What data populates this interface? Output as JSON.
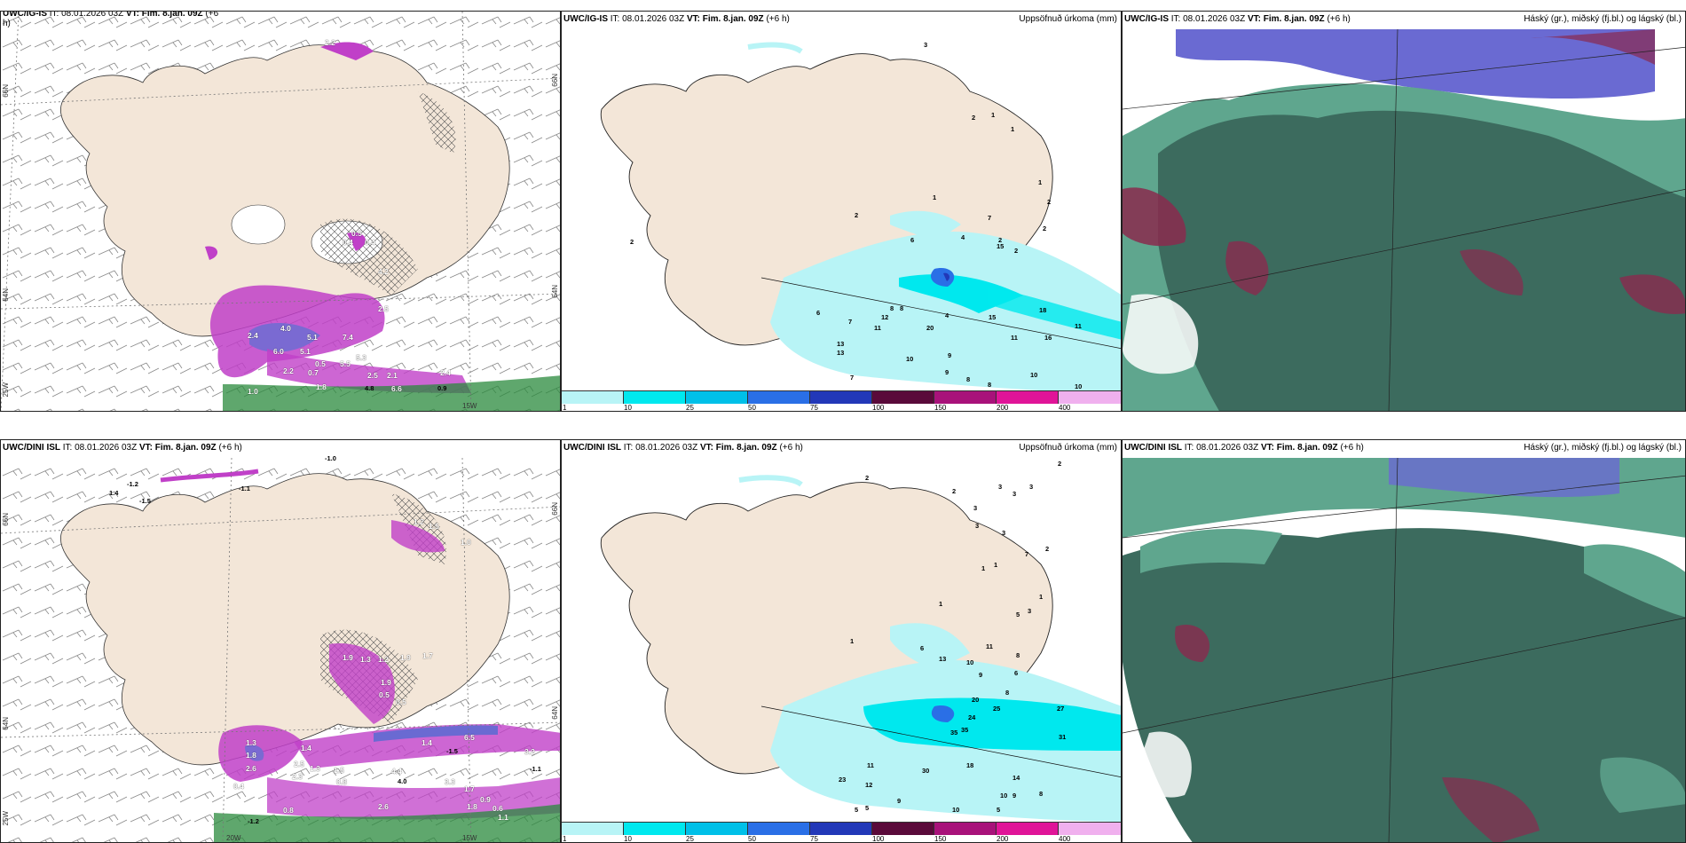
{
  "panels": {
    "top_left": {
      "title_model": "UWC/IG-IS",
      "title_it": "IT: 08.01.2026 03Z",
      "title_vt": "VT: Fim. 8.jan. 09Z",
      "title_step": "(+6",
      "title_wrap": "h)",
      "lat_labels": [
        "66N",
        "64N",
        "25W"
      ],
      "lat_labels_right": [
        "66N",
        "64N"
      ],
      "lon_labels": [
        "15W"
      ],
      "values": [
        "2.2",
        "0.5",
        "0.4",
        "0.4",
        "2.5",
        "4.0",
        "2.4",
        "5.1",
        "7.4",
        "6.0",
        "5.1",
        "5.5",
        "5.3",
        "2.5",
        "2.1",
        "2.2",
        "0.7",
        "0.5",
        "1.8",
        "4.8",
        "6.6",
        "0.9",
        "1.0",
        "2.4",
        "4.2",
        "1.5"
      ]
    },
    "top_mid": {
      "title_model": "UWC/IG-IS",
      "title_it": "IT: 08.01.2026 03Z",
      "title_vt": "VT: Fim. 8.jan. 09Z",
      "title_step": "(+6 h)",
      "right_label": "Uppsöfnuð úrkoma (mm)",
      "values": [
        "3",
        "2",
        "1",
        "1",
        "1",
        "1",
        "2",
        "2",
        "2",
        "7",
        "2",
        "15",
        "6",
        "4",
        "2",
        "6",
        "2",
        "13",
        "7",
        "8",
        "8",
        "12",
        "11",
        "20",
        "15",
        "18",
        "11",
        "4",
        "11",
        "16",
        "13",
        "10",
        "9",
        "7",
        "9",
        "8",
        "10",
        "8",
        "10",
        "5"
      ]
    },
    "top_right": {
      "title_model": "UWC/IG-IS",
      "title_it": "IT: 08.01.2026 03Z",
      "title_vt": "VT: Fim. 8.jan. 09Z",
      "title_step": "(+6 h)",
      "right_label": "Háský (gr.), miðský (fj.bl.) og lágský (bl.)"
    },
    "bottom_left": {
      "title_model": "UWC/DINI ISL",
      "title_it": "IT: 08.01.2026 03Z",
      "title_vt": "VT: Fim. 8.jan. 09Z",
      "title_step": "(+6 h)",
      "lat_labels": [
        "66N",
        "64N",
        "25W"
      ],
      "lat_labels_right": [
        "66N",
        "64N"
      ],
      "lon_labels": [
        "20W",
        "15W"
      ],
      "values": [
        "-1.0",
        "-1.2",
        "1.4",
        "-1.5",
        "-1.1",
        "1.2",
        "1.5",
        "1.0",
        "1.9",
        "1.3",
        "1.2",
        "1.9",
        "1.7",
        "0.5",
        "1.9",
        "0.5",
        "1.3",
        "1.8",
        "2.6",
        "2.5",
        "1.3",
        "1.4",
        "2.3",
        "1.5",
        "0.8",
        "0.4",
        "-1.5",
        "1.4",
        "6.5",
        "3.2",
        "4.4",
        "4.0",
        "3.3",
        "1.7",
        "-1.1",
        "0.9",
        "0.6",
        "2.6",
        "1.8",
        "-1.2",
        "0.8",
        "1.1"
      ]
    },
    "bottom_mid": {
      "title_model": "UWC/DINI ISL",
      "title_it": "IT: 08.01.2026 03Z",
      "title_vt": "VT: Fim. 8.jan. 09Z",
      "title_step": "(+6 h)",
      "right_label": "Uppsöfnuð úrkoma (mm)",
      "values": [
        "2",
        "2",
        "3",
        "3",
        "3",
        "2",
        "3",
        "3",
        "3",
        "7",
        "2",
        "1",
        "1",
        "1",
        "1",
        "5",
        "3",
        "1",
        "6",
        "11",
        "8",
        "13",
        "10",
        "9",
        "6",
        "8",
        "20",
        "25",
        "27",
        "24",
        "35",
        "35",
        "31",
        "30",
        "18",
        "14",
        "12",
        "11",
        "23",
        "9",
        "5",
        "5",
        "10",
        "10",
        "9",
        "8",
        "5"
      ]
    },
    "bottom_right": {
      "title_model": "UWC/DINI ISL",
      "title_it": "IT: 08.01.2026 03Z",
      "title_vt": "VT: Fim. 8.jan. 09Z",
      "title_step": "(+6 h)",
      "right_label": "Háský (gr.), miðský (fj.bl.) og lágský (bl.)"
    }
  },
  "colorbar": {
    "ticks": [
      "1",
      "10",
      "25",
      "50",
      "75",
      "100",
      "150",
      "200",
      "400"
    ],
    "colors": [
      "#b8f4f6",
      "#00e8ee",
      "#00c0e8",
      "#2a6fe6",
      "#2238b8",
      "#5a0a3a",
      "#a8127a",
      "#e01498",
      "#f0b0ee"
    ]
  },
  "colors": {
    "land": "#f3e6d8",
    "precip_light": "#b8f4f6",
    "precip_mid": "#00e8ee",
    "cloud_dark": "#3c6b5e",
    "cloud_teal": "#5fa68e",
    "cloud_blue": "#6a6ad2",
    "cloud_red": "#8a2a4e",
    "magenta": "#c040c8",
    "green": "#2a8a3c"
  }
}
